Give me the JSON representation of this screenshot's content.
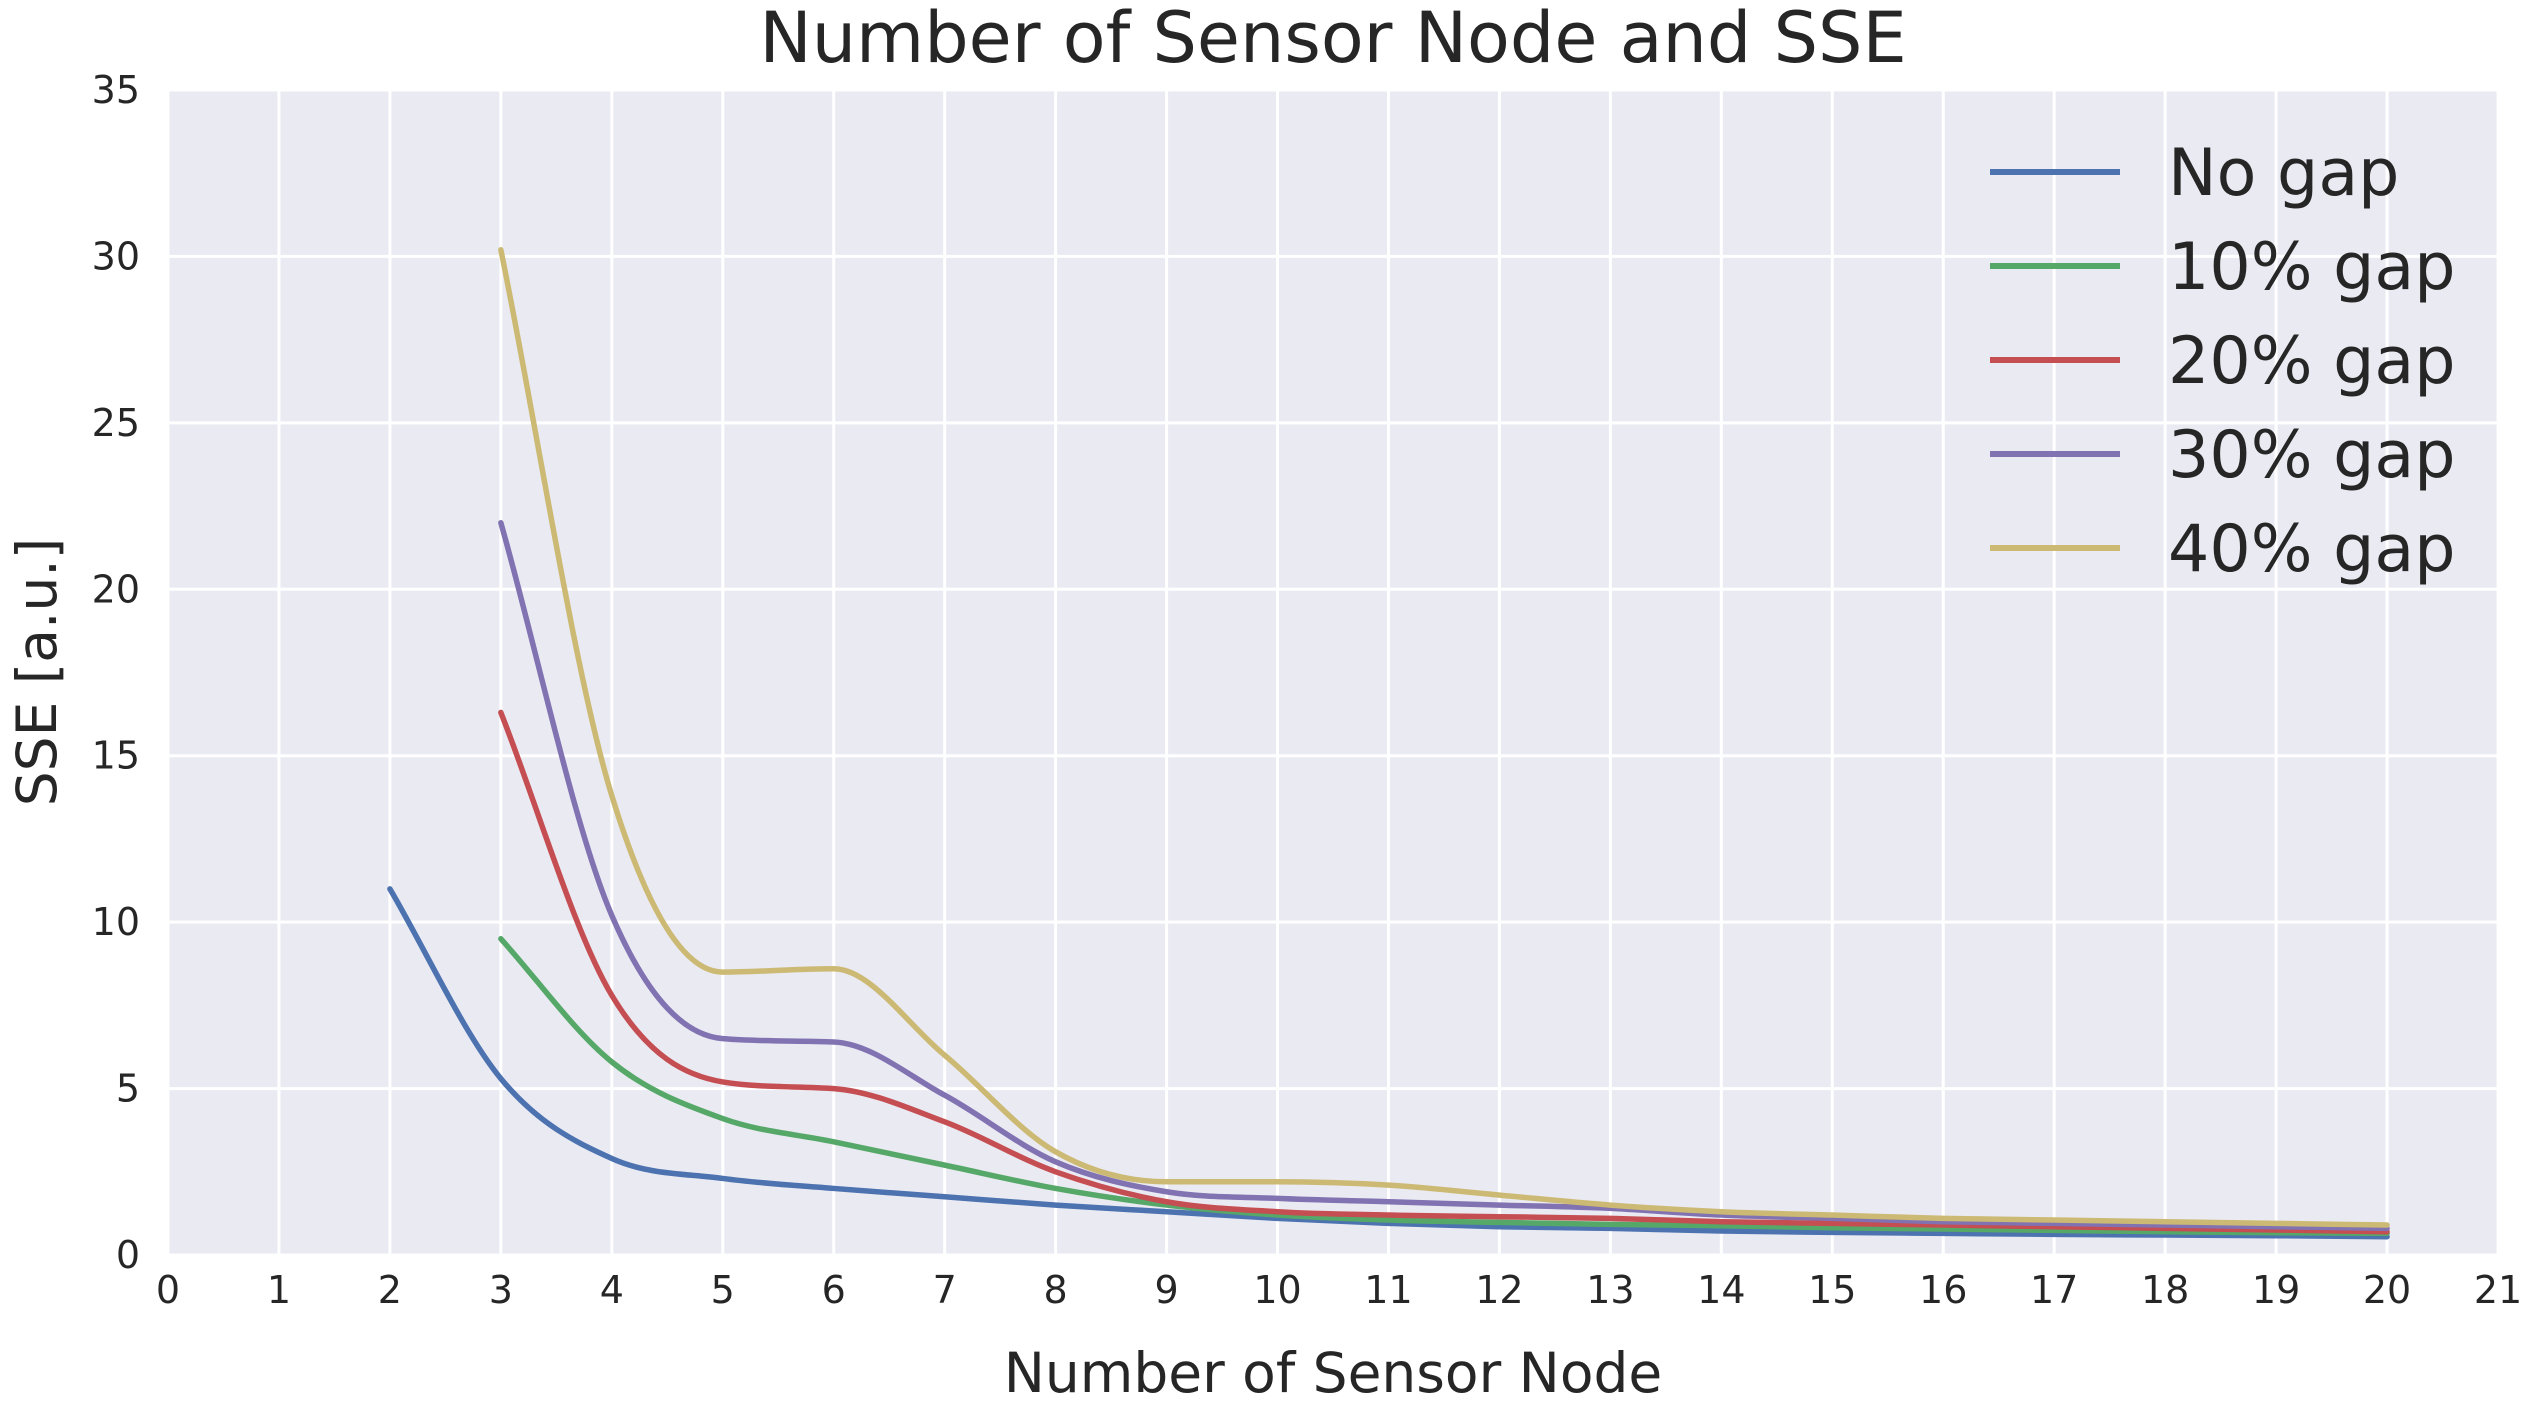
{
  "chart_data": {
    "type": "line",
    "title": "Number of Sensor Node and SSE",
    "xlabel": "Number of Sensor Node",
    "ylabel": "SSE [a.u.]",
    "xlim": [
      0,
      21
    ],
    "ylim": [
      0,
      35
    ],
    "xticks": [
      0,
      1,
      2,
      3,
      4,
      5,
      6,
      7,
      8,
      9,
      10,
      11,
      12,
      13,
      14,
      15,
      16,
      17,
      18,
      19,
      20,
      21
    ],
    "yticks": [
      0,
      5,
      10,
      15,
      20,
      25,
      30,
      35
    ],
    "grid": true,
    "legend_position": "top-right",
    "series": [
      {
        "name": "No gap",
        "color": "#4c72b0",
        "x": [
          2,
          3,
          4,
          5,
          6,
          7,
          8,
          9,
          10,
          11,
          12,
          13,
          14,
          15,
          16,
          17,
          18,
          19,
          20
        ],
        "y": [
          11.0,
          5.3,
          2.9,
          2.3,
          2.0,
          1.75,
          1.5,
          1.3,
          1.1,
          0.95,
          0.85,
          0.8,
          0.72,
          0.68,
          0.65,
          0.62,
          0.6,
          0.58,
          0.55
        ]
      },
      {
        "name": "10% gap",
        "color": "#55a868",
        "x": [
          3,
          4,
          5,
          6,
          7,
          8,
          9,
          10,
          11,
          12,
          13,
          14,
          15,
          16,
          17,
          18,
          19,
          20
        ],
        "y": [
          9.5,
          5.8,
          4.1,
          3.4,
          2.7,
          2.0,
          1.5,
          1.2,
          1.05,
          0.98,
          0.92,
          0.88,
          0.82,
          0.78,
          0.74,
          0.7,
          0.67,
          0.65
        ]
      },
      {
        "name": "20% gap",
        "color": "#c44e52",
        "x": [
          3,
          4,
          5,
          6,
          7,
          8,
          9,
          10,
          11,
          12,
          13,
          14,
          15,
          16,
          17,
          18,
          19,
          20
        ],
        "y": [
          16.3,
          7.8,
          5.2,
          5.0,
          4.0,
          2.5,
          1.6,
          1.3,
          1.2,
          1.15,
          1.1,
          1.0,
          0.95,
          0.9,
          0.85,
          0.8,
          0.75,
          0.7
        ]
      },
      {
        "name": "30% gap",
        "color": "#8172b2",
        "x": [
          3,
          4,
          5,
          6,
          7,
          8,
          9,
          10,
          11,
          12,
          13,
          14,
          15,
          16,
          17,
          18,
          19,
          20
        ],
        "y": [
          22.0,
          10.2,
          6.5,
          6.4,
          4.8,
          2.8,
          1.9,
          1.7,
          1.6,
          1.5,
          1.4,
          1.2,
          1.1,
          1.0,
          0.95,
          0.9,
          0.85,
          0.8
        ]
      },
      {
        "name": "40% gap",
        "color": "#ccb974",
        "x": [
          3,
          4,
          5,
          6,
          7,
          8,
          9,
          10,
          11,
          12,
          13,
          14,
          15,
          16,
          17,
          18,
          19,
          20
        ],
        "y": [
          30.2,
          13.8,
          8.5,
          8.6,
          6.0,
          3.1,
          2.2,
          2.2,
          2.1,
          1.8,
          1.5,
          1.3,
          1.2,
          1.1,
          1.05,
          1.0,
          0.95,
          0.9
        ]
      }
    ]
  }
}
